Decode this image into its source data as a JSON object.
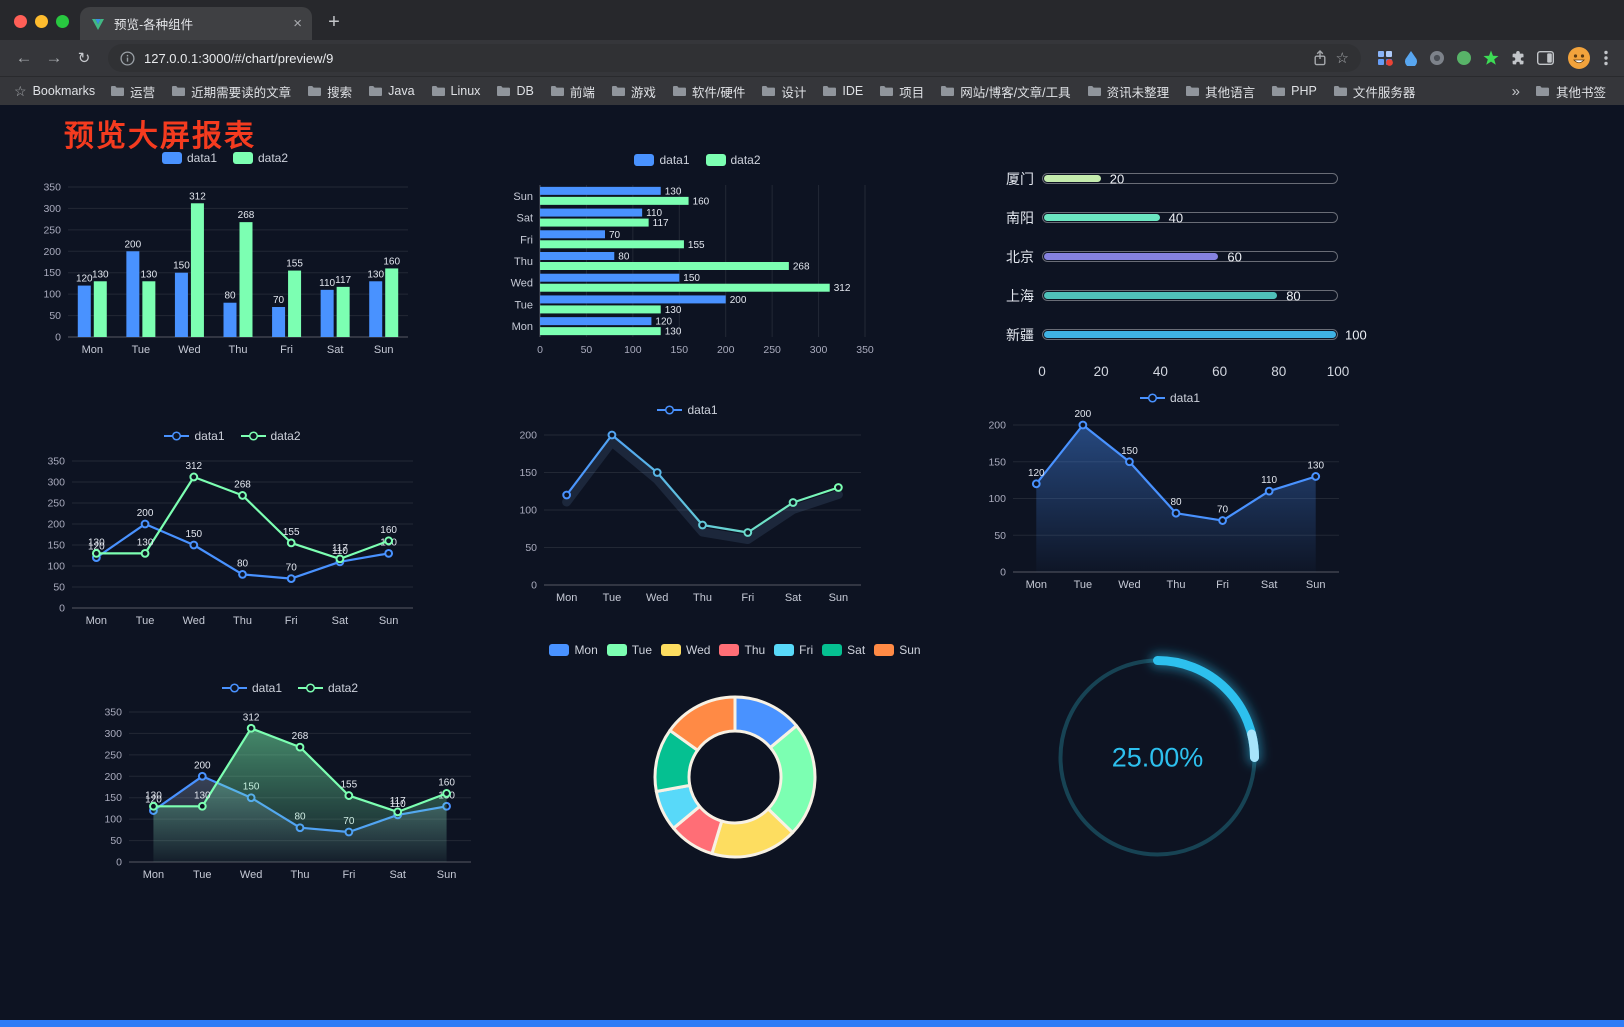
{
  "colors": {
    "page_background": "#0d1322",
    "title_red": "#f43b1f",
    "footer_blue": "#2e7cf6",
    "series_blue": "#4992ff",
    "series_green": "#7cffb2"
  },
  "browser": {
    "tab": {
      "title": "预览-各种组件"
    },
    "icons": {
      "close": "×",
      "new_tab": "+",
      "back": "←",
      "forward": "→",
      "reload": "↻",
      "star": "☆"
    },
    "toolbar": {
      "url": "127.0.0.1:3000/#/chart/preview/9"
    },
    "bookmarks_bar": {
      "bookmarks_label": "Bookmarks",
      "folders": [
        "运营",
        "近期需要读的文章",
        "搜索",
        "Java",
        "Linux",
        "DB",
        "前端",
        "游戏",
        "软件/硬件",
        "设计",
        "IDE",
        "项目",
        "网站/博客/文章/工具",
        "资讯未整理",
        "其他语言",
        "PHP",
        "文件服务器"
      ],
      "overflow_chevron": "»",
      "other_bookmarks": "其他书签"
    }
  },
  "page": {
    "title": "预览大屏报表"
  },
  "chart_data": [
    {
      "id": "bar-vertical",
      "type": "bar",
      "legend": [
        "data1",
        "data2"
      ],
      "categories": [
        "Mon",
        "Tue",
        "Wed",
        "Thu",
        "Fri",
        "Sat",
        "Sun"
      ],
      "series": [
        {
          "name": "data1",
          "color": "#4992ff",
          "values": [
            120,
            200,
            150,
            80,
            70,
            110,
            130
          ]
        },
        {
          "name": "data2",
          "color": "#7cffb2",
          "values": [
            130,
            130,
            312,
            268,
            155,
            117,
            160
          ]
        }
      ],
      "ylim": [
        0,
        350
      ],
      "yticks": [
        0,
        50,
        100,
        150,
        200,
        250,
        300,
        350
      ],
      "show_labels": true
    },
    {
      "id": "bar-horizontal",
      "type": "bar-horizontal",
      "legend": [
        "data1",
        "data2"
      ],
      "categories": [
        "Mon",
        "Tue",
        "Wed",
        "Thu",
        "Fri",
        "Sat",
        "Sun"
      ],
      "series": [
        {
          "name": "data1",
          "color": "#4992ff",
          "values": [
            120,
            200,
            150,
            80,
            70,
            110,
            130
          ]
        },
        {
          "name": "data2",
          "color": "#7cffb2",
          "values": [
            130,
            130,
            312,
            268,
            155,
            117,
            160
          ]
        }
      ],
      "xlim": [
        0,
        350
      ],
      "xticks": [
        0,
        50,
        100,
        150,
        200,
        250,
        300,
        350
      ],
      "show_labels": true
    },
    {
      "id": "capsule",
      "type": "capsule",
      "rows": [
        {
          "label": "厦门",
          "value": 20,
          "color": "#c4ebad"
        },
        {
          "label": "南阳",
          "value": 40,
          "color": "#6be6c1"
        },
        {
          "label": "北京",
          "value": 60,
          "color": "#8582e0"
        },
        {
          "label": "上海",
          "value": 80,
          "color": "#4fc0ba"
        },
        {
          "label": "新疆",
          "value": 100,
          "color": "#3fb1e3"
        }
      ],
      "max": 100,
      "xticks": [
        0,
        20,
        40,
        60,
        80,
        100
      ]
    },
    {
      "id": "line-two",
      "type": "line",
      "legend": [
        "data1",
        "data2"
      ],
      "categories": [
        "Mon",
        "Tue",
        "Wed",
        "Thu",
        "Fri",
        "Sat",
        "Sun"
      ],
      "series": [
        {
          "name": "data1",
          "color": "#4992ff",
          "values": [
            120,
            200,
            150,
            80,
            70,
            110,
            130
          ]
        },
        {
          "name": "data2",
          "color": "#7cffb2",
          "values": [
            130,
            130,
            312,
            268,
            155,
            117,
            160
          ]
        }
      ],
      "ylim": [
        0,
        350
      ],
      "yticks": [
        0,
        50,
        100,
        150,
        200,
        250,
        300,
        350
      ],
      "show_labels": true
    },
    {
      "id": "line-gradient",
      "type": "line",
      "legend": [
        "data1"
      ],
      "categories": [
        "Mon",
        "Tue",
        "Wed",
        "Thu",
        "Fri",
        "Sat",
        "Sun"
      ],
      "series": [
        {
          "name": "data1",
          "gradient": [
            "#4992ff",
            "#7cffb2"
          ],
          "values": [
            120,
            200,
            150,
            80,
            70,
            110,
            130
          ]
        }
      ],
      "ylim": [
        0,
        200
      ],
      "yticks": [
        0,
        50,
        100,
        150,
        200
      ],
      "show_labels": false,
      "shadow": true
    },
    {
      "id": "line-area",
      "type": "line",
      "legend": [
        "data1"
      ],
      "categories": [
        "Mon",
        "Tue",
        "Wed",
        "Thu",
        "Fri",
        "Sat",
        "Sun"
      ],
      "series": [
        {
          "name": "data1",
          "color": "#4992ff",
          "values": [
            120,
            200,
            150,
            80,
            70,
            110,
            130
          ],
          "area": true,
          "area_from": "rgba(73,146,255,0.42)",
          "area_to": "rgba(73,146,255,0.02)"
        }
      ],
      "ylim": [
        0,
        200
      ],
      "yticks": [
        0,
        50,
        100,
        150,
        200
      ],
      "show_labels": true
    },
    {
      "id": "line-area-two",
      "type": "line",
      "legend": [
        "data1",
        "data2"
      ],
      "categories": [
        "Mon",
        "Tue",
        "Wed",
        "Thu",
        "Fri",
        "Sat",
        "Sun"
      ],
      "series": [
        {
          "name": "data1",
          "color": "#4992ff",
          "values": [
            120,
            200,
            150,
            80,
            70,
            110,
            130
          ],
          "area": true,
          "area_from": "rgba(170,190,225,0.28)",
          "area_to": "rgba(170,190,225,0.02)"
        },
        {
          "name": "data2",
          "color": "#7cffb2",
          "values": [
            130,
            130,
            312,
            268,
            155,
            117,
            160
          ],
          "area": true,
          "area_from": "rgba(124,255,178,0.50)",
          "area_to": "rgba(124,255,178,0.03)"
        }
      ],
      "ylim": [
        0,
        350
      ],
      "yticks": [
        0,
        50,
        100,
        150,
        200,
        250,
        300,
        350
      ],
      "show_labels": true
    },
    {
      "id": "donut",
      "type": "pie",
      "legend": [
        "Mon",
        "Tue",
        "Wed",
        "Thu",
        "Fri",
        "Sat",
        "Sun"
      ],
      "border_color": "#f7f1e4",
      "slices": [
        {
          "name": "Mon",
          "value": 120,
          "color": "#4992ff"
        },
        {
          "name": "Tue",
          "value": 200,
          "color": "#7cffb2"
        },
        {
          "name": "Wed",
          "value": 150,
          "color": "#fddd60"
        },
        {
          "name": "Thu",
          "value": 80,
          "color": "#ff6e76"
        },
        {
          "name": "Fri",
          "value": 70,
          "color": "#58d9f9"
        },
        {
          "name": "Sat",
          "value": 110,
          "color": "#05c091"
        },
        {
          "name": "Sun",
          "value": 130,
          "color": "#ff8a45"
        }
      ]
    },
    {
      "id": "gauge",
      "type": "gauge",
      "value": 25,
      "display": "25.00%",
      "color": "#2dc0ee",
      "tip_color": "#a8e4fa",
      "track_color": "#174354"
    }
  ]
}
